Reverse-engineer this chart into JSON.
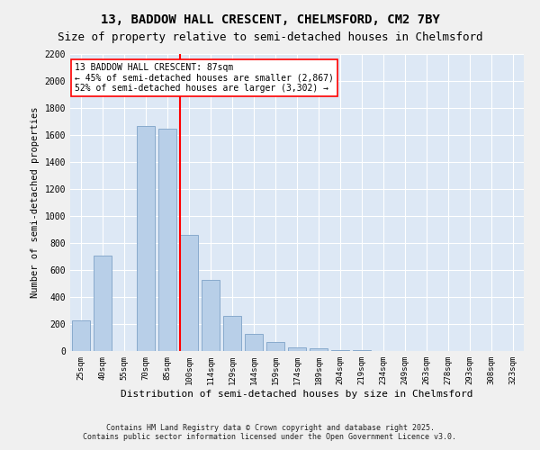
{
  "title": "13, BADDOW HALL CRESCENT, CHELMSFORD, CM2 7BY",
  "subtitle": "Size of property relative to semi-detached houses in Chelmsford",
  "xlabel": "Distribution of semi-detached houses by size in Chelmsford",
  "ylabel": "Number of semi-detached properties",
  "categories": [
    "25sqm",
    "40sqm",
    "55sqm",
    "70sqm",
    "85sqm",
    "100sqm",
    "114sqm",
    "129sqm",
    "144sqm",
    "159sqm",
    "174sqm",
    "189sqm",
    "204sqm",
    "219sqm",
    "234sqm",
    "249sqm",
    "263sqm",
    "278sqm",
    "293sqm",
    "308sqm",
    "323sqm"
  ],
  "values": [
    230,
    710,
    0,
    1670,
    1650,
    860,
    530,
    260,
    130,
    70,
    30,
    20,
    10,
    5,
    3,
    2,
    1,
    1,
    0,
    0,
    0
  ],
  "bar_color": "#b8cfe8",
  "bar_edge_color": "#88aacc",
  "annotation_text": "13 BADDOW HALL CRESCENT: 87sqm\n← 45% of semi-detached houses are smaller (2,867)\n52% of semi-detached houses are larger (3,302) →",
  "ylim": [
    0,
    2200
  ],
  "yticks": [
    0,
    200,
    400,
    600,
    800,
    1000,
    1200,
    1400,
    1600,
    1800,
    2000,
    2200
  ],
  "bg_color": "#dde8f5",
  "fig_color": "#f0f0f0",
  "footnote": "Contains HM Land Registry data © Crown copyright and database right 2025.\nContains public sector information licensed under the Open Government Licence v3.0.",
  "title_fontsize": 10,
  "subtitle_fontsize": 9,
  "red_line_x": 4.57
}
